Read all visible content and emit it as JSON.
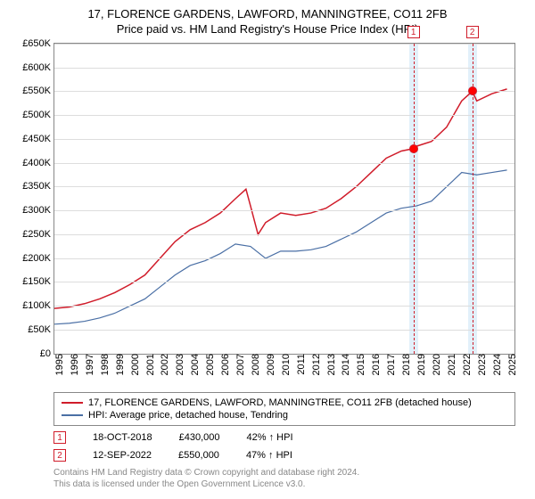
{
  "title": {
    "line1": "17, FLORENCE GARDENS, LAWFORD, MANNINGTREE, CO11 2FB",
    "line2": "Price paid vs. HM Land Registry's House Price Index (HPI)",
    "fontsize": 13,
    "color": "#000000"
  },
  "chart": {
    "type": "line",
    "background_color": "#ffffff",
    "grid_color": "#dddddd",
    "border_color": "#888888",
    "ylim": [
      0,
      650000
    ],
    "ytick_step": 50000,
    "y_labels": [
      "£0",
      "£50K",
      "£100K",
      "£150K",
      "£200K",
      "£250K",
      "£300K",
      "£350K",
      "£400K",
      "£450K",
      "£500K",
      "£550K",
      "£600K",
      "£650K"
    ],
    "x_labels": [
      "1995",
      "1996",
      "1997",
      "1998",
      "1999",
      "2000",
      "2001",
      "2002",
      "2003",
      "2004",
      "2005",
      "2006",
      "2007",
      "2008",
      "2009",
      "2010",
      "2011",
      "2012",
      "2013",
      "2014",
      "2015",
      "2016",
      "2017",
      "2018",
      "2019",
      "2020",
      "2021",
      "2022",
      "2023",
      "2024",
      "2025"
    ],
    "x_range_years": [
      1995,
      2025.5
    ],
    "label_fontsize": 11,
    "highlight_bands": [
      {
        "start_year": 2018.5,
        "end_year": 2019.1,
        "color": "#d6e9f8"
      },
      {
        "start_year": 2022.4,
        "end_year": 2023.0,
        "color": "#d6e9f8"
      }
    ],
    "highlight_lines": [
      {
        "year": 2018.8,
        "color": "#d01c2a"
      },
      {
        "year": 2022.7,
        "color": "#d01c2a"
      }
    ],
    "marker_numbers": [
      {
        "n": "1",
        "year": 2018.8
      },
      {
        "n": "2",
        "year": 2022.7
      }
    ],
    "sale_points": [
      {
        "year": 2018.8,
        "value": 430000
      },
      {
        "year": 2022.7,
        "value": 550000
      }
    ],
    "series": [
      {
        "name": "price_paid",
        "color": "#d01c2a",
        "width": 1.5,
        "x": [
          1995,
          1996,
          1997,
          1998,
          1999,
          2000,
          2001,
          2002,
          2003,
          2004,
          2005,
          2006,
          2007,
          2007.7,
          2008,
          2008.5,
          2009,
          2010,
          2011,
          2012,
          2013,
          2014,
          2015,
          2016,
          2017,
          2018,
          2018.8,
          2019,
          2020,
          2021,
          2022,
          2022.7,
          2023,
          2024,
          2025
        ],
        "y": [
          95000,
          98000,
          105000,
          115000,
          128000,
          145000,
          165000,
          200000,
          235000,
          260000,
          275000,
          295000,
          325000,
          345000,
          310000,
          250000,
          275000,
          295000,
          290000,
          295000,
          305000,
          325000,
          350000,
          380000,
          410000,
          425000,
          430000,
          435000,
          445000,
          475000,
          530000,
          550000,
          530000,
          545000,
          555000
        ]
      },
      {
        "name": "hpi",
        "color": "#4a6fa5",
        "width": 1.2,
        "x": [
          1995,
          1996,
          1997,
          1998,
          1999,
          2000,
          2001,
          2002,
          2003,
          2004,
          2005,
          2006,
          2007,
          2008,
          2009,
          2010,
          2011,
          2012,
          2013,
          2014,
          2015,
          2016,
          2017,
          2018,
          2019,
          2020,
          2021,
          2022,
          2023,
          2024,
          2025
        ],
        "y": [
          62000,
          64000,
          68000,
          75000,
          85000,
          100000,
          115000,
          140000,
          165000,
          185000,
          195000,
          210000,
          230000,
          225000,
          200000,
          215000,
          215000,
          218000,
          225000,
          240000,
          255000,
          275000,
          295000,
          305000,
          310000,
          320000,
          350000,
          380000,
          375000,
          380000,
          385000
        ]
      }
    ]
  },
  "legend": {
    "border_color": "#888888",
    "items": [
      {
        "color": "#d01c2a",
        "label": "17, FLORENCE GARDENS, LAWFORD, MANNINGTREE, CO11 2FB (detached house)"
      },
      {
        "color": "#4a6fa5",
        "label": "HPI: Average price, detached house, Tendring"
      }
    ]
  },
  "annotations": [
    {
      "n": "1",
      "date": "18-OCT-2018",
      "price": "£430,000",
      "delta": "42% ↑ HPI"
    },
    {
      "n": "2",
      "date": "12-SEP-2022",
      "price": "£550,000",
      "delta": "47% ↑ HPI"
    }
  ],
  "footer": {
    "line1": "Contains HM Land Registry data © Crown copyright and database right 2024.",
    "line2": "This data is licensed under the Open Government Licence v3.0.",
    "color": "#888888"
  }
}
